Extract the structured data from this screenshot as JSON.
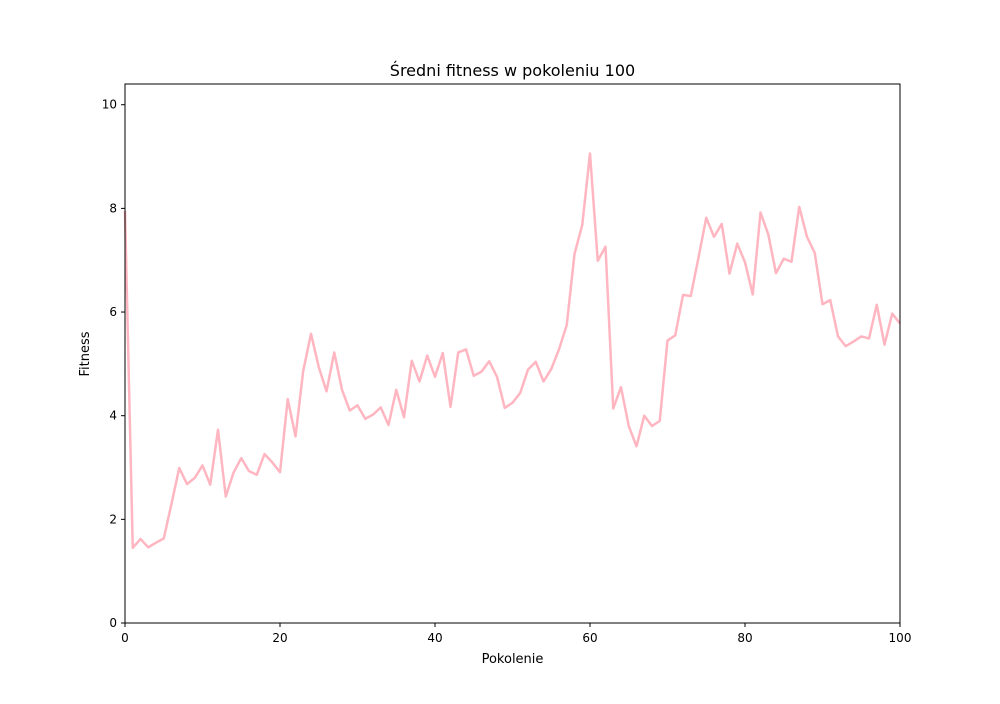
{
  "chart_data": {
    "type": "line",
    "title": "Średni fitness w pokoleniu 100",
    "xlabel": "Pokolenie",
    "ylabel": "Fitness",
    "xlim": [
      0,
      100
    ],
    "ylim": [
      0,
      10.4
    ],
    "xticks": [
      0,
      20,
      40,
      60,
      80,
      100
    ],
    "yticks": [
      0,
      2,
      4,
      6,
      8,
      10
    ],
    "grid": false,
    "legend": "none",
    "line_color": "#ffb6c1",
    "series": [
      {
        "x": [
          0,
          1,
          2,
          3,
          4,
          5,
          6,
          7,
          8,
          9,
          10,
          11,
          12,
          13,
          14,
          15,
          16,
          17,
          18,
          19,
          20,
          21,
          22,
          23,
          24,
          25,
          26,
          27,
          28,
          29,
          30,
          31,
          32,
          33,
          34,
          35,
          36,
          37,
          38,
          39,
          40,
          41,
          42,
          43,
          44,
          45,
          46,
          47,
          48,
          49,
          50,
          51,
          52,
          53,
          54,
          55,
          56,
          57,
          58,
          59,
          60,
          61,
          62,
          63,
          64,
          65,
          66,
          67,
          68,
          69,
          70,
          71,
          72,
          73,
          74,
          75,
          76,
          77,
          78,
          79,
          80,
          81,
          82,
          83,
          84,
          85,
          86,
          87,
          88,
          89,
          90,
          91,
          92,
          93,
          94,
          95,
          96,
          97,
          98,
          99,
          100
        ],
        "values": [
          7.95,
          1.45,
          1.62,
          1.46,
          1.55,
          1.63,
          2.3,
          2.99,
          2.68,
          2.8,
          3.04,
          2.67,
          3.73,
          2.44,
          2.9,
          3.18,
          2.93,
          2.86,
          3.26,
          3.1,
          2.91,
          4.32,
          3.6,
          4.87,
          5.58,
          4.94,
          4.47,
          5.22,
          4.5,
          4.1,
          4.2,
          3.94,
          4.02,
          4.16,
          3.82,
          4.5,
          3.97,
          5.06,
          4.66,
          5.16,
          4.75,
          5.21,
          4.17,
          5.22,
          5.28,
          4.77,
          4.85,
          5.05,
          4.75,
          4.15,
          4.25,
          4.44,
          4.89,
          5.04,
          4.66,
          4.9,
          5.28,
          5.75,
          7.12,
          7.68,
          9.06,
          6.99,
          7.26,
          4.14,
          4.55,
          3.8,
          3.41,
          4.0,
          3.8,
          3.9,
          5.45,
          5.55,
          6.33,
          6.31,
          7.05,
          7.82,
          7.45,
          7.7,
          6.74,
          7.32,
          6.96,
          6.34,
          7.92,
          7.5,
          6.75,
          7.03,
          6.97,
          8.03,
          7.45,
          7.14,
          6.15,
          6.23,
          5.53,
          5.34,
          5.43,
          5.53,
          5.49,
          6.14,
          5.37,
          5.97,
          5.78
        ]
      }
    ]
  }
}
